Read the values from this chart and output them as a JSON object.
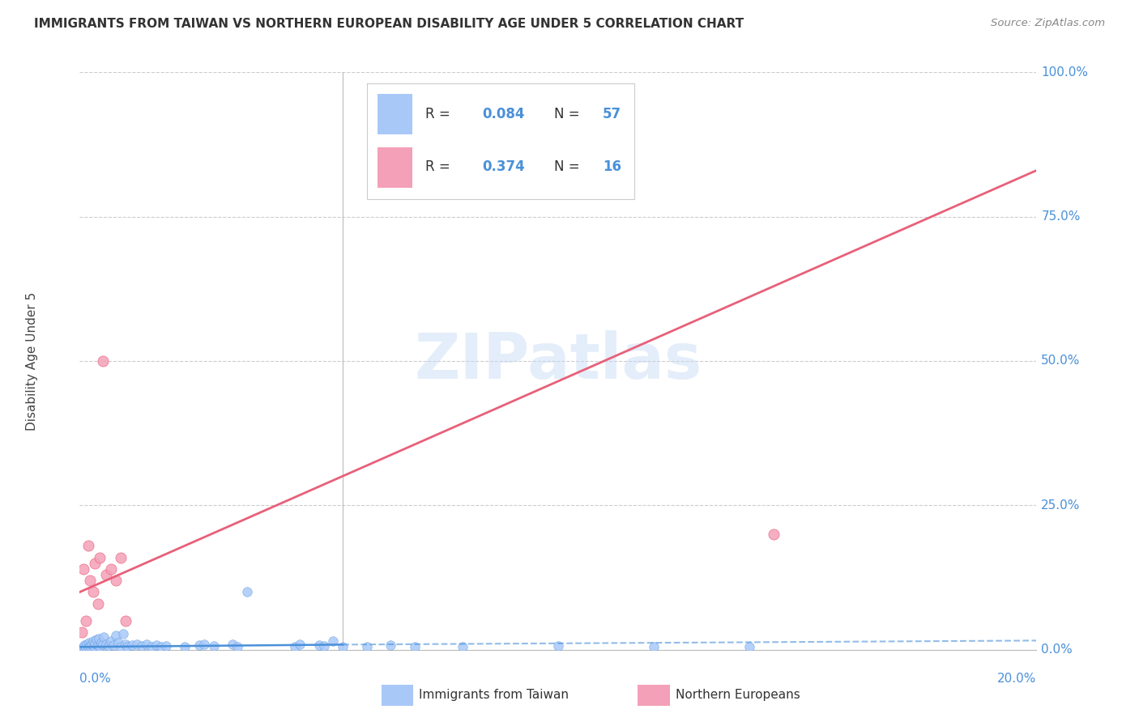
{
  "title": "IMMIGRANTS FROM TAIWAN VS NORTHERN EUROPEAN DISABILITY AGE UNDER 5 CORRELATION CHART",
  "source": "Source: ZipAtlas.com",
  "ylabel": "Disability Age Under 5",
  "ytick_labels": [
    "0.0%",
    "25.0%",
    "50.0%",
    "75.0%",
    "100.0%"
  ],
  "ytick_values": [
    0,
    25,
    50,
    75,
    100
  ],
  "xlim": [
    0,
    20
  ],
  "ylim": [
    0,
    100
  ],
  "watermark": "ZIPatlas",
  "color_blue": "#a8c8f8",
  "color_blue_dark": "#4a90d9",
  "color_pink": "#f4a0b8",
  "color_pink_dark": "#e8607a",
  "color_axis_blue": "#4a90d9",
  "taiwan_x": [
    0.05,
    0.08,
    0.1,
    0.12,
    0.15,
    0.18,
    0.2,
    0.22,
    0.25,
    0.28,
    0.3,
    0.32,
    0.35,
    0.38,
    0.4,
    0.42,
    0.45,
    0.48,
    0.5,
    0.55,
    0.6,
    0.65,
    0.7,
    0.75,
    0.8,
    0.85,
    0.9,
    0.95,
    1.0,
    1.1,
    1.2,
    1.3,
    1.4,
    1.5,
    1.6,
    1.7,
    1.8,
    2.2,
    2.5,
    2.6,
    2.8,
    3.2,
    3.3,
    3.5,
    4.5,
    4.6,
    5.0,
    5.1,
    5.3,
    5.5,
    6.0,
    6.5,
    7.0,
    8.0,
    10.0,
    12.0,
    14.0
  ],
  "taiwan_y": [
    0.3,
    0.5,
    0.8,
    0.4,
    1.0,
    0.6,
    1.2,
    0.7,
    0.9,
    1.5,
    0.5,
    1.1,
    1.8,
    0.8,
    2.0,
    0.6,
    1.3,
    0.9,
    2.2,
    1.0,
    0.7,
    1.5,
    0.8,
    2.5,
    1.2,
    0.6,
    2.8,
    1.0,
    0.5,
    0.8,
    1.0,
    0.7,
    0.9,
    0.6,
    0.8,
    0.5,
    0.7,
    0.6,
    0.8,
    1.0,
    0.7,
    0.9,
    0.6,
    10.0,
    0.5,
    1.0,
    0.8,
    0.7,
    1.5,
    0.6,
    0.5,
    0.8,
    0.6,
    0.5,
    0.7,
    0.6,
    0.5
  ],
  "northern_x": [
    0.05,
    0.08,
    0.12,
    0.18,
    0.22,
    0.28,
    0.32,
    0.38,
    0.42,
    0.48,
    0.55,
    0.65,
    0.75,
    0.85,
    0.95,
    14.5
  ],
  "northern_y": [
    3.0,
    14.0,
    5.0,
    18.0,
    12.0,
    10.0,
    15.0,
    8.0,
    16.0,
    50.0,
    13.0,
    14.0,
    12.0,
    16.0,
    5.0,
    20.0
  ],
  "tw_trend_x0": 0,
  "tw_trend_x1": 20,
  "tw_trend_y0": 0.5,
  "tw_trend_y1": 1.8,
  "ne_trend_x0": 0,
  "ne_trend_x1": 20,
  "ne_trend_y0": 10,
  "ne_trend_y1": 83,
  "tw_dash_x0": 5.5,
  "tw_dash_x1": 20,
  "tw_dash_y0": 0.9,
  "tw_dash_y1": 1.6,
  "vline_x": 5.5,
  "legend_blue_label": "R = 0.084   N = 57",
  "legend_pink_label": "R = 0.374   N = 16"
}
